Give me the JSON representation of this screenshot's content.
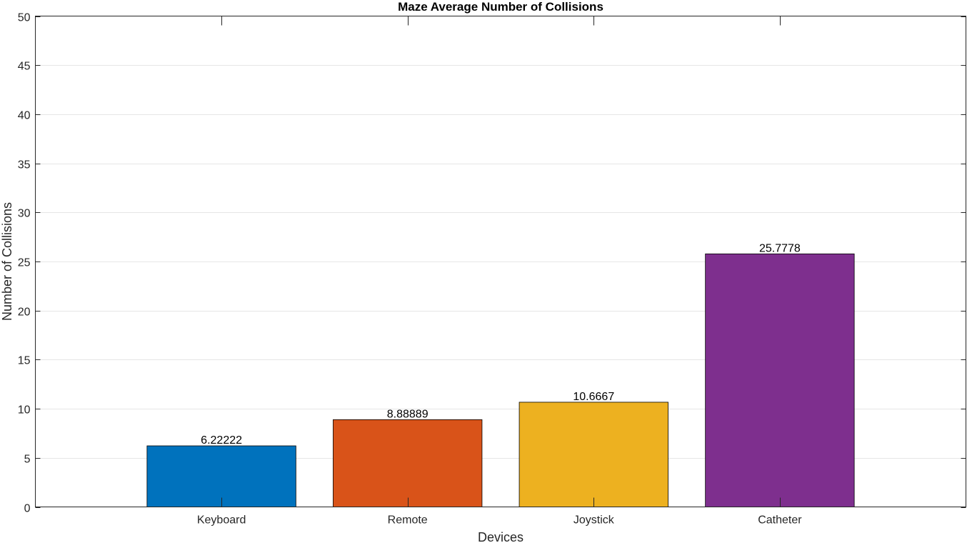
{
  "chart_data": {
    "type": "bar",
    "title": "Maze Average Number of Collisions",
    "xlabel": "Devices",
    "ylabel": "Number of Collisions",
    "categories": [
      "Keyboard",
      "Remote",
      "Joystick",
      "Catheter"
    ],
    "values": [
      6.22222,
      8.88889,
      10.6667,
      25.7778
    ],
    "value_labels": [
      "6.22222",
      "8.88889",
      "10.6667",
      "25.7778"
    ],
    "colors": [
      "#0072BD",
      "#D95319",
      "#EDB120",
      "#7E2F8E"
    ],
    "ylim": [
      0,
      50
    ],
    "yticks": [
      0,
      5,
      10,
      15,
      20,
      25,
      30,
      35,
      40,
      45,
      50
    ],
    "ytick_labels": [
      "0",
      "5",
      "10",
      "15",
      "20",
      "25",
      "30",
      "35",
      "40",
      "45",
      "50"
    ],
    "x_range": [
      0,
      5
    ],
    "grid": "y",
    "legend": "none"
  }
}
